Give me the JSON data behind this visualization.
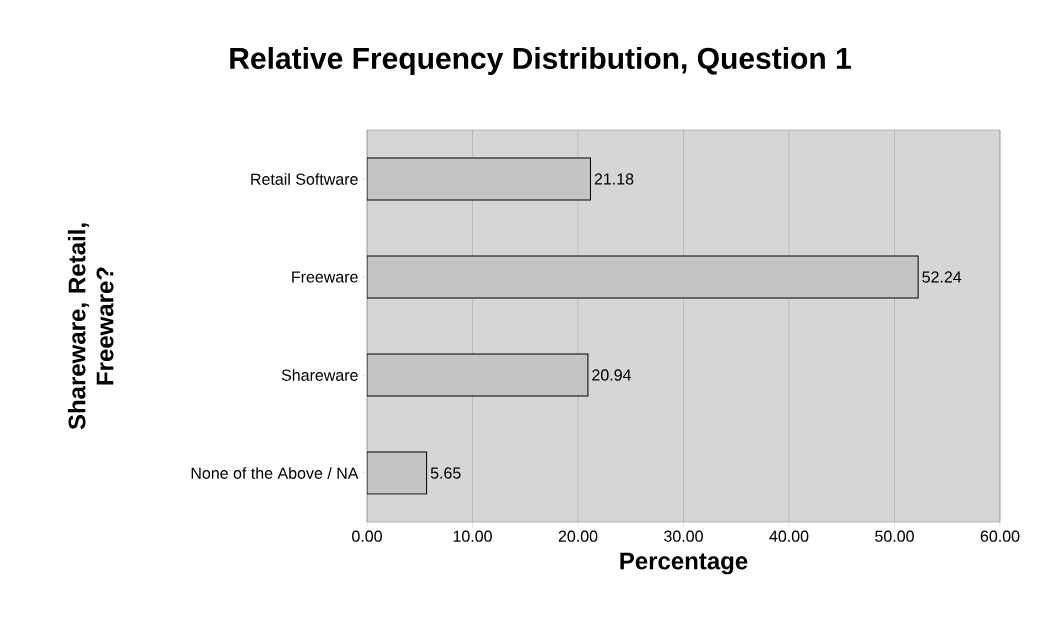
{
  "chart_data": {
    "type": "bar",
    "orientation": "horizontal",
    "title": "Relative Frequency Distribution, Question 1",
    "xlabel": "Percentage",
    "ylabel": "Shareware, Retail, Freeware?",
    "categories": [
      "Retail Software",
      "Freeware",
      "Shareware",
      "None of the Above / NA"
    ],
    "values": [
      21.18,
      52.24,
      20.94,
      5.65
    ],
    "color": "#c4c4c4",
    "data_labels": true,
    "xlim": [
      0,
      60
    ],
    "xticks": [
      {
        "value": 0,
        "label": "0.00"
      },
      {
        "value": 10,
        "label": "10.00"
      },
      {
        "value": 20,
        "label": "20.00"
      },
      {
        "value": 30,
        "label": "30.00"
      },
      {
        "value": 40,
        "label": "40.00"
      },
      {
        "value": 50,
        "label": "50.00"
      },
      {
        "value": 60,
        "label": "60.00"
      }
    ],
    "grid": "x"
  }
}
